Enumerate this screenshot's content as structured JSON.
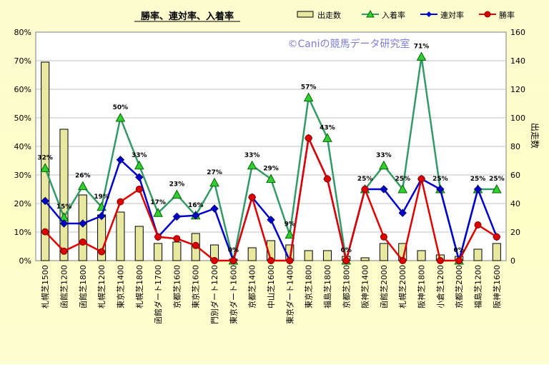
{
  "chart_data": {
    "type": "bar",
    "title": "勝率、連対率、入着率",
    "watermark": "©Caniの競馬データ研究室",
    "categories": [
      "札幌芝1500",
      "函館芝1200",
      "函館芝1800",
      "札幌芝1200",
      "東京芝1400",
      "札幌芝1800",
      "函館ダート1700",
      "京都芝1600",
      "東京芝1600",
      "門別ダート1200",
      "東京ダート1600",
      "京都芝1400",
      "中山芝1600",
      "東京ダート1400",
      "東京芝1800",
      "福島芝1800",
      "京都芝1800",
      "阪神芝1400",
      "函館芝2000",
      "札幌芝2000",
      "阪神芝1800",
      "小倉芝1200",
      "京都芝2000",
      "福島芝1200",
      "阪神芝1600"
    ],
    "y2label": "出走数",
    "ylim": [
      0,
      80
    ],
    "y2lim": [
      0,
      160
    ],
    "yticks": [
      "0%",
      "10%",
      "20%",
      "30%",
      "40%",
      "50%",
      "60%",
      "70%",
      "80%"
    ],
    "y2ticks": [
      "0",
      "20",
      "40",
      "60",
      "80",
      "100",
      "120",
      "140",
      "160"
    ],
    "grid": true,
    "legend_position": "top-right",
    "series": [
      {
        "name": "出走数",
        "kind": "bar",
        "axis": "right",
        "color": "#e8e8a0",
        "values": [
          139,
          92,
          46,
          32,
          34,
          24,
          12,
          13,
          19,
          11,
          1,
          9,
          14,
          11,
          7,
          7,
          3,
          2,
          12,
          12,
          7,
          4,
          3,
          8,
          12
        ]
      },
      {
        "name": "入着率",
        "kind": "line",
        "axis": "left",
        "color": "#339966",
        "values": [
          32.4,
          15.2,
          26.1,
          18.8,
          50,
          33.3,
          16.7,
          23.1,
          15.8,
          27.3,
          0,
          33.3,
          28.6,
          9.1,
          57.1,
          42.9,
          0,
          25,
          33.3,
          25,
          71.4,
          25,
          0,
          25,
          25
        ]
      },
      {
        "name": "連対率",
        "kind": "line",
        "axis": "left",
        "color": "#0000cc",
        "values": [
          20.9,
          13,
          13,
          15.6,
          35.3,
          29.2,
          8.3,
          15.4,
          15.8,
          18.2,
          0,
          22.2,
          14.3,
          0,
          42.9,
          28.6,
          0,
          25,
          25,
          16.7,
          28.6,
          25,
          0,
          25,
          8.3
        ]
      },
      {
        "name": "勝率",
        "kind": "line",
        "axis": "left",
        "color": "#dd0000",
        "values": [
          10.1,
          3.3,
          6.5,
          3.1,
          20.6,
          25,
          8.3,
          7.7,
          5.3,
          0,
          0,
          22.2,
          0,
          0,
          42.9,
          28.6,
          0,
          25,
          8.3,
          0,
          28.6,
          0,
          0,
          12.5,
          8.3
        ]
      }
    ],
    "data_labels": [
      "32%",
      "15%",
      "26%",
      "19%",
      "50%",
      "33%",
      "17%",
      "23%",
      "16%",
      "27%",
      "0%",
      "33%",
      "29%",
      "9%",
      "57%",
      "43%",
      "0%",
      "25%",
      "33%",
      "25%",
      "71%",
      "25%",
      "0%",
      "25%",
      "25%"
    ]
  }
}
